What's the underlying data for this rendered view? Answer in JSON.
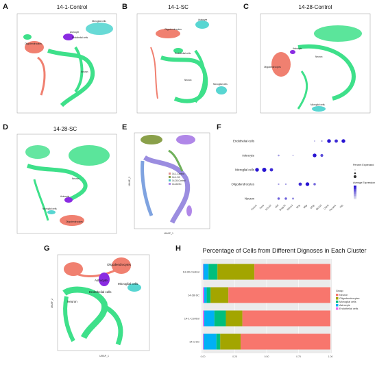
{
  "panels": {
    "A": {
      "letter": "A",
      "title": "14-1-Control",
      "labels": [
        "Microglial cells",
        "Endothelial cells",
        "Oligodendrocytes",
        "Astrocyte",
        "Neuron"
      ]
    },
    "B": {
      "letter": "B",
      "title": "14-1-SC",
      "labels": [
        "Oligodendrocytes",
        "Astrocyte",
        "Endothelial cells",
        "Neuron",
        "Microglial cells"
      ]
    },
    "C": {
      "letter": "C",
      "title": "14-28-Control",
      "labels": [
        "Oligodendrocytes",
        "Astrocyte",
        "Neuron",
        "Microglial cells"
      ]
    },
    "D": {
      "letter": "D",
      "title": "14-28-SC",
      "labels": [
        "Neuron",
        "Astrocyte",
        "Microglial cells",
        "Oligodendrocytes"
      ]
    },
    "E": {
      "letter": "E",
      "legend": [
        "14-1-Control",
        "14-1-SC",
        "14-28-Control",
        "14-28-SC"
      ],
      "xlabel": "UMAP_1",
      "ylabel": "UMAP_2"
    },
    "G": {
      "letter": "G",
      "labels": [
        "Oligodendrocytes",
        "Astrocyte",
        "Microglial cells",
        "Endothelial cells",
        "Neuron"
      ],
      "xlabel": "UMAP_1",
      "ylabel": "UMAP_2"
    }
  },
  "chart_data": [
    {
      "panel": "F",
      "type": "scatter",
      "title": "",
      "cell_types": [
        "Endothelial cells",
        "Astrocyte",
        "Microglial cells",
        "Oligodendrocytes",
        "Neuron"
      ],
      "genes": [
        "Cx3cr1",
        "Hexb",
        "P2ry12",
        "Mal",
        "Snap25",
        "Rbfox3",
        "Mog",
        "Mbp",
        "Gfap",
        "Slc1a3",
        "Cldn5",
        "Pecam1",
        "Flt1"
      ],
      "legend_size_title": "Percent Expressed",
      "legend_color_title": "Average Expression",
      "dots": [
        {
          "cell": "Endothelial cells",
          "gene": "Cldn5",
          "pct": 70,
          "avg": 2.5
        },
        {
          "cell": "Endothelial cells",
          "gene": "Pecam1",
          "pct": 60,
          "avg": 2.2
        },
        {
          "cell": "Endothelial cells",
          "gene": "Flt1",
          "pct": 70,
          "avg": 2.5
        },
        {
          "cell": "Endothelial cells",
          "gene": "Gfap",
          "pct": 15,
          "avg": 0.5
        },
        {
          "cell": "Endothelial cells",
          "gene": "Slc1a3",
          "pct": 20,
          "avg": 0.8
        },
        {
          "cell": "Astrocyte",
          "gene": "Gfap",
          "pct": 70,
          "avg": 2.5
        },
        {
          "cell": "Astrocyte",
          "gene": "Slc1a3",
          "pct": 50,
          "avg": 1.8
        },
        {
          "cell": "Astrocyte",
          "gene": "Mal",
          "pct": 25,
          "avg": 0.8
        },
        {
          "cell": "Astrocyte",
          "gene": "Rbfox3",
          "pct": 15,
          "avg": 0.5
        },
        {
          "cell": "Microglial cells",
          "gene": "Cx3cr1",
          "pct": 70,
          "avg": 2.5
        },
        {
          "cell": "Microglial cells",
          "gene": "Hexb",
          "pct": 80,
          "avg": 2.5
        },
        {
          "cell": "Microglial cells",
          "gene": "P2ry12",
          "pct": 60,
          "avg": 2.2
        },
        {
          "cell": "Oligodendrocytes",
          "gene": "Mal",
          "pct": 20,
          "avg": 0.8
        },
        {
          "cell": "Oligodendrocytes",
          "gene": "Snap25",
          "pct": 20,
          "avg": 0.8
        },
        {
          "cell": "Oligodendrocytes",
          "gene": "Mog",
          "pct": 60,
          "avg": 2.2
        },
        {
          "cell": "Oligodendrocytes",
          "gene": "Mbp",
          "pct": 70,
          "avg": 2.5
        },
        {
          "cell": "Oligodendrocytes",
          "gene": "Gfap",
          "pct": 40,
          "avg": 1.5
        },
        {
          "cell": "Neuron",
          "gene": "Mal",
          "pct": 40,
          "avg": 1.5
        },
        {
          "cell": "Neuron",
          "gene": "Snap25",
          "pct": 40,
          "avg": 1.5
        },
        {
          "cell": "Neuron",
          "gene": "Rbfox3",
          "pct": 30,
          "avg": 1.0
        }
      ]
    },
    {
      "panel": "H",
      "type": "bar",
      "orientation": "horizontal",
      "stacked": true,
      "title": "Percentage of Cells from Different Dignoses in Each Cluster",
      "categories": [
        "14-28-Control",
        "14-28-SC",
        "14-1-Control",
        "14-1-SC"
      ],
      "xlim": [
        0,
        1
      ],
      "xticks": [
        "0.00",
        "0.25",
        "0.50",
        "0.75",
        "1.00"
      ],
      "legend_title": "Group",
      "series": [
        {
          "name": "Endothelial cells",
          "color": "#e76bf3",
          "values": [
            0.004,
            0.01,
            0.01,
            0.006
          ]
        },
        {
          "name": "Astrocyte",
          "color": "#00b0f6",
          "values": [
            0.04,
            0.02,
            0.08,
            0.1
          ]
        },
        {
          "name": "Microglial cells",
          "color": "#00bf7d",
          "values": [
            0.07,
            0.03,
            0.09,
            0.03
          ]
        },
        {
          "name": "Oligodendrocytes",
          "color": "#a3a500",
          "values": [
            0.29,
            0.14,
            0.13,
            0.16
          ]
        },
        {
          "name": "Neuron",
          "color": "#f8766d",
          "values": [
            0.596,
            0.8,
            0.69,
            0.704
          ]
        }
      ]
    }
  ]
}
